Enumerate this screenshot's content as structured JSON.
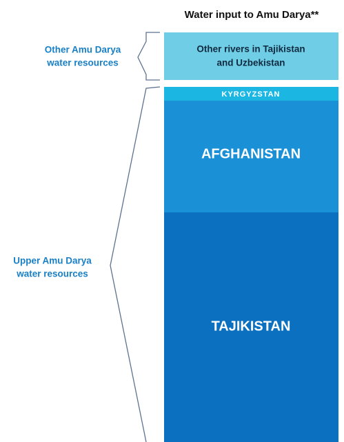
{
  "title": "Water input to Amu Darya**",
  "groups": [
    {
      "label": [
        "Other Amu Darya",
        "water resources"
      ]
    },
    {
      "label": [
        "Upper Amu Darya",
        "water resources"
      ]
    }
  ],
  "segments": [
    {
      "label": [
        "Other rivers in Tajikistan",
        "and Uzbekistan"
      ]
    },
    {
      "label": [
        "KYRGYZSTAN"
      ]
    },
    {
      "label": [
        "AFGHANISTAN"
      ]
    },
    {
      "label": [
        "TAJIKISTAN"
      ]
    }
  ]
}
